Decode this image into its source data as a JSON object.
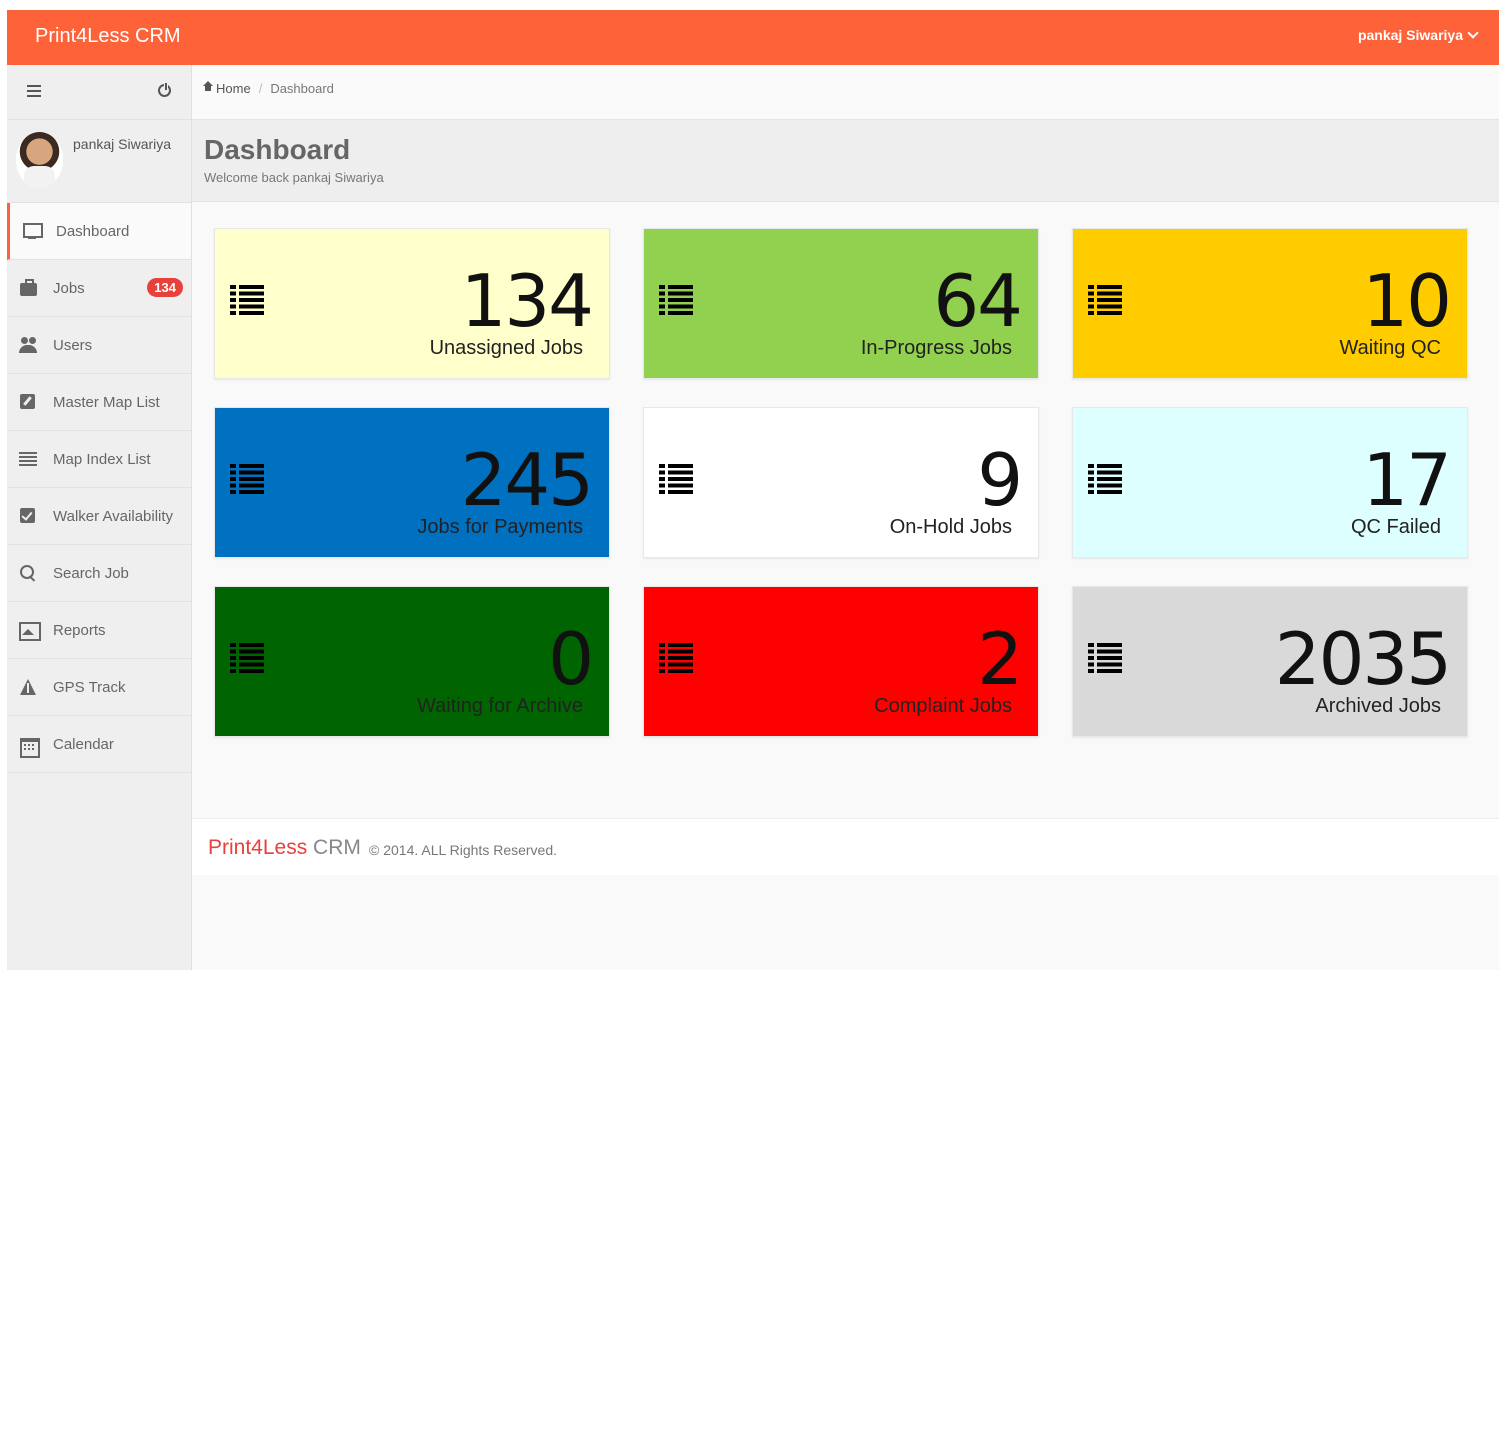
{
  "topbar": {
    "brand": "Print4Less CRM",
    "user": "pankaj  Siwariya"
  },
  "sidebar": {
    "profile_name": "pankaj  Siwariya",
    "items": [
      {
        "label": "Dashboard",
        "icon": "monitor-icon"
      },
      {
        "label": "Jobs",
        "icon": "briefcase-icon",
        "badge": "134"
      },
      {
        "label": "Users",
        "icon": "users-icon"
      },
      {
        "label": "Master Map List",
        "icon": "edit-icon"
      },
      {
        "label": "Map Index List",
        "icon": "list-icon"
      },
      {
        "label": "Walker Availability",
        "icon": "check-icon"
      },
      {
        "label": "Search Job",
        "icon": "search-icon"
      },
      {
        "label": "Reports",
        "icon": "picture-icon"
      },
      {
        "label": "GPS Track",
        "icon": "road-icon"
      },
      {
        "label": "Calendar",
        "icon": "calendar-icon"
      }
    ]
  },
  "breadcrumb": {
    "home": "Home",
    "current": "Dashboard"
  },
  "header": {
    "title": "Dashboard",
    "subtitle": "Welcome back pankaj  Siwariya"
  },
  "tiles": [
    {
      "value": "134",
      "label": "Unassigned Jobs",
      "color": "#ffffcc"
    },
    {
      "value": "64",
      "label": "In-Progress Jobs",
      "color": "#92d050"
    },
    {
      "value": "10",
      "label": "Waiting QC",
      "color": "#ffcc00"
    },
    {
      "value": "245",
      "label": "Jobs for Payments",
      "color": "#0070c0"
    },
    {
      "value": "9",
      "label": "On-Hold Jobs",
      "color": "#ffffff"
    },
    {
      "value": "17",
      "label": "QC Failed",
      "color": "#ddffff"
    },
    {
      "value": "0",
      "label": "Waiting for Archive",
      "color": "#006400"
    },
    {
      "value": "2",
      "label": "Complaint Jobs",
      "color": "#ff0000"
    },
    {
      "value": "2035",
      "label": "Archived Jobs",
      "color": "#d9d9d9"
    }
  ],
  "footer": {
    "brand_part1": "Print4Less",
    "brand_part2": " CRM",
    "copyright": "© 2014. ALL Rights Reserved."
  },
  "colors": {
    "topbar": "#fd6239",
    "accent": "#e8413b"
  }
}
